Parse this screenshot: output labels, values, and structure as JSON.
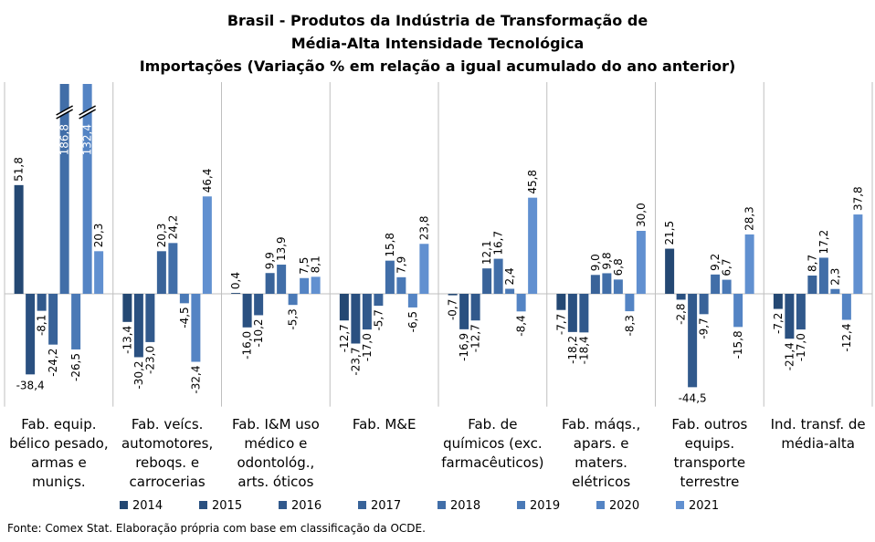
{
  "chart_data": {
    "type": "bar",
    "title": [
      "Brasil - Produtos da Indústria de Transformação de",
      "Média-Alta Intensidade Tecnológica",
      "Importações (Variação % em relação a igual acumulado do ano anterior)"
    ],
    "categories": [
      "Fab. equip. bélico pesado, armas e muniçs.",
      "Fab. veícs. automotores, reboqs. e carrocerias",
      "Fab. I&M uso médico e odontológ., arts. óticos",
      "Fab. M&E",
      "Fab. de químicos (exc. farmacêuticos)",
      "Fab. máqs., apars. e maters. elétricos",
      "Fab. outros equips. transporte terrestre",
      "Ind. transf. de média-alta"
    ],
    "series": [
      {
        "name": "2014",
        "color": "#244873",
        "values": [
          51.8,
          -13.4,
          0.4,
          -12.7,
          -0.7,
          -7.7,
          21.5,
          -7.2
        ],
        "value_labels": [
          "51,8",
          "-13,4",
          "0,4",
          "-12,7",
          "-0,7",
          "-7,7",
          "21,5",
          "-7,2"
        ]
      },
      {
        "name": "2015",
        "color": "#2a5080",
        "values": [
          -38.4,
          -30.2,
          -16.0,
          -23.7,
          -16.9,
          -18.2,
          -2.8,
          -21.4
        ],
        "value_labels": [
          "-38,4",
          "-30,2",
          "-16,0",
          "-23,7",
          "-16,9",
          "-18,2",
          "-2,8",
          "-21,4"
        ]
      },
      {
        "name": "2016",
        "color": "#31598c",
        "values": [
          -8.1,
          -23.0,
          -10.2,
          -17.0,
          -12.7,
          -18.4,
          -44.5,
          -17.0
        ],
        "value_labels": [
          "-8,1",
          "-23,0",
          "-10,2",
          "-17,0",
          "-12,7",
          "-18,4",
          "-44,5",
          "-17,0"
        ]
      },
      {
        "name": "2017",
        "color": "#396399",
        "values": [
          -24.2,
          20.3,
          9.9,
          -5.7,
          12.1,
          9.0,
          -9.7,
          8.7
        ],
        "value_labels": [
          "-24,2",
          "20,3",
          "9,9",
          "-5,7",
          "12,1",
          "9,0",
          "-9,7",
          "8,7"
        ]
      },
      {
        "name": "2018",
        "color": "#416ea8",
        "values": [
          186.8,
          24.2,
          13.9,
          15.8,
          16.7,
          9.8,
          9.2,
          17.2
        ],
        "value_labels": [
          "186,8",
          "24,2",
          "13,9",
          "15,8",
          "16,7",
          "9,8",
          "9,2",
          "17,2"
        ]
      },
      {
        "name": "2019",
        "color": "#4a79b6",
        "values": [
          -26.5,
          -4.5,
          -5.3,
          7.9,
          2.4,
          6.8,
          6.7,
          2.3
        ],
        "value_labels": [
          "-26,5",
          "-4,5",
          "-5,3",
          "7,9",
          "2,4",
          "6,8",
          "6,7",
          "2,3"
        ]
      },
      {
        "name": "2020",
        "color": "#5484c4",
        "values": [
          132.4,
          -32.4,
          7.5,
          -6.5,
          -8.4,
          -8.3,
          -15.8,
          -12.4
        ],
        "value_labels": [
          "132,4",
          "-32,4",
          "7,5",
          "-6,5",
          "-8,4",
          "-8,3",
          "-15,8",
          "-12,4"
        ]
      },
      {
        "name": "2021",
        "color": "#6190d0",
        "values": [
          20.3,
          46.4,
          8.1,
          23.8,
          45.8,
          30.0,
          28.3,
          37.8
        ],
        "value_labels": [
          "20,3",
          "46,4",
          "8,1",
          "23,8",
          "45,8",
          "30,0",
          "28,3",
          "37,8"
        ]
      }
    ],
    "ylim": [
      -52,
      100
    ],
    "source": "Fonte: Comex Stat. Elaboração própria com base em classificação da OCDE."
  }
}
